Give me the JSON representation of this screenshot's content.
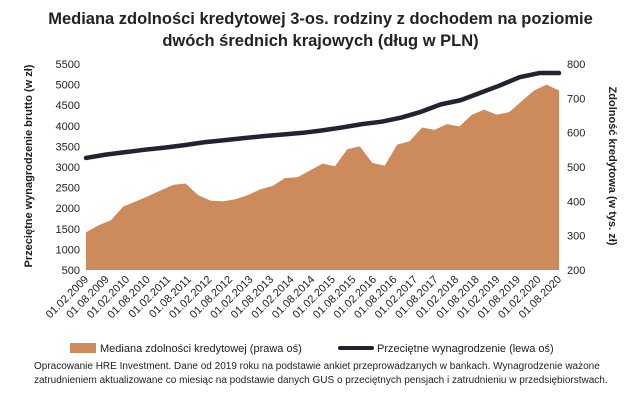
{
  "chart_data": {
    "type": "area+line",
    "title_line1": "Mediana zdolności kredytowej 3-os. rodziny z dochodem na poziomie",
    "title_line2": "dwóch średnich krajowych (dług w PLN)",
    "ylabel_left": "Przeciętne wynagrodzenie brutto (w zł)",
    "ylabel_right": "Zdolność kredytowa (w tys. zł)",
    "ylim_left": [
      500,
      5500
    ],
    "ylim_right": [
      200,
      800
    ],
    "yticks_left": [
      "500",
      "1000",
      "1500",
      "2000",
      "2500",
      "3000",
      "3500",
      "4000",
      "4500",
      "5000",
      "5500"
    ],
    "yticks_right": [
      "200",
      "300",
      "400",
      "500",
      "600",
      "700",
      "800"
    ],
    "x_tick_labels": [
      "01.02.2009",
      "01.08.2009",
      "01.02.2010",
      "01.08.2010",
      "01.02.2011",
      "01.08.2011",
      "01.02.2012",
      "01.08.2012",
      "01.02.2013",
      "01.08.2013",
      "01.02.2014",
      "01.08.2014",
      "01.02.2015",
      "01.08.2015",
      "01.02.2016",
      "01.08.2016",
      "01.02.2017",
      "01.08.2017",
      "01.02.2018",
      "01.08.2018",
      "01.02.2019",
      "01.08.2019",
      "01.02.2020",
      "01.08.2020"
    ],
    "series": [
      {
        "name": "Mediana zdolności kredytowej (prawa oś)",
        "axis": "right",
        "kind": "area",
        "color": "#cd8a5a",
        "values": [
          310,
          330,
          345,
          385,
          400,
          415,
          432,
          448,
          452,
          418,
          402,
          400,
          406,
          418,
          435,
          445,
          468,
          470,
          490,
          510,
          502,
          552,
          560,
          512,
          504,
          565,
          575,
          615,
          608,
          625,
          618,
          652,
          667,
          652,
          660,
          692,
          723,
          740,
          723
        ]
      },
      {
        "name": "Przeciętne wynagrodzenie (lewa oś)",
        "axis": "left",
        "kind": "line",
        "color": "#1f2430",
        "values": [
          3220,
          3300,
          3360,
          3420,
          3470,
          3530,
          3600,
          3650,
          3700,
          3750,
          3790,
          3830,
          3890,
          3960,
          4040,
          4100,
          4200,
          4340,
          4520,
          4620,
          4800,
          4980,
          5180,
          5280,
          5280
        ]
      }
    ],
    "legend": [
      "Mediana zdolności kredytowej (prawa oś)",
      "Przeciętne wynagrodzenie (lewa oś)"
    ]
  },
  "note": "Opracowanie HRE Investment. Dane od 2019 roku na podstawie ankiet przeprowadzanych w bankach. Wynagrodzenie ważone zatrudnieniem aktualizowane co miesiąc na podstawie danych GUS o przeciętnych pensjach i zatrudnieniu w przedsiębiorstwach."
}
